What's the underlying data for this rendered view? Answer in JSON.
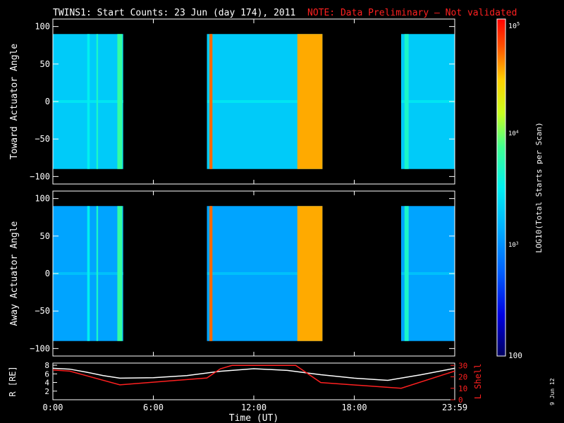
{
  "title": "TWINS1: Start Counts: 23 Jun (day 174), 2011",
  "note": "NOTE: Data Preliminary – Not validated",
  "date_stamp": "9 Jun 12",
  "chart_data": [
    {
      "type": "heatmap",
      "ylabel": "Toward Actuator Angle",
      "ylim": [
        -110,
        110
      ],
      "yticks": [
        "100",
        "50",
        "0",
        "−50",
        "−100"
      ],
      "data_range_deg": [
        -90,
        90
      ],
      "coverage_hours": [
        [
          0.0,
          4.2
        ],
        [
          9.2,
          16.1
        ],
        [
          20.8,
          24.0
        ]
      ],
      "stripes": [
        {
          "t": 2.05,
          "w": 0.15,
          "level": 0.5
        },
        {
          "t": 2.6,
          "w": 0.1,
          "level": 0.55
        },
        {
          "t": 3.85,
          "w": 0.3,
          "level": 0.6
        },
        {
          "t": 9.35,
          "w": 0.18,
          "level": 0.9
        },
        {
          "t": 14.6,
          "w": 1.5,
          "level": 0.85
        },
        {
          "t": 21.0,
          "w": 0.25,
          "level": 0.55
        }
      ]
    },
    {
      "type": "heatmap",
      "ylabel": "Away Actuator Angle",
      "ylim": [
        -110,
        110
      ],
      "yticks": [
        "100",
        "50",
        "0",
        "−50",
        "−100"
      ],
      "data_range_deg": [
        -90,
        90
      ],
      "coverage_hours": [
        [
          0.0,
          4.2
        ],
        [
          9.2,
          16.1
        ],
        [
          20.8,
          24.0
        ]
      ],
      "stripes": [
        {
          "t": 2.05,
          "w": 0.15,
          "level": 0.5
        },
        {
          "t": 2.6,
          "w": 0.1,
          "level": 0.55
        },
        {
          "t": 3.85,
          "w": 0.3,
          "level": 0.6
        },
        {
          "t": 9.35,
          "w": 0.18,
          "level": 0.9
        },
        {
          "t": 14.6,
          "w": 1.5,
          "level": 0.85
        },
        {
          "t": 21.0,
          "w": 0.25,
          "level": 0.55
        }
      ]
    },
    {
      "type": "line",
      "xlabel": "Time (UT)",
      "xticks": [
        "0:00",
        "6:00",
        "12:00",
        "18:00",
        "23:59"
      ],
      "ylabel_left": "R [RE]",
      "ylabel_right": "L Shell",
      "left_ticks": [
        "8",
        "6",
        "4",
        "2"
      ],
      "right_ticks": [
        "30",
        "20",
        "10",
        "0"
      ],
      "series": [
        {
          "color": "#ffffff",
          "x": [
            0,
            1,
            2,
            3,
            4,
            6,
            8,
            10,
            12,
            14,
            16,
            18,
            20,
            22,
            24
          ],
          "y": [
            7.3,
            7.1,
            6.4,
            5.6,
            5.0,
            5.1,
            5.6,
            6.6,
            7.2,
            6.8,
            5.8,
            5.0,
            4.5,
            5.8,
            7.3
          ]
        },
        {
          "color": "#ff2020",
          "x": [
            0,
            1,
            4,
            9.2,
            10,
            10.7,
            14.5,
            16,
            20.8,
            24
          ],
          "y": [
            26,
            25,
            13,
            19,
            27,
            30,
            30,
            15,
            10,
            25
          ]
        }
      ]
    }
  ],
  "colorbar": {
    "label": "LOG10(Total Starts per Scan)",
    "ticks": [
      "10^5",
      "10^4",
      "10^3",
      "100"
    ]
  }
}
